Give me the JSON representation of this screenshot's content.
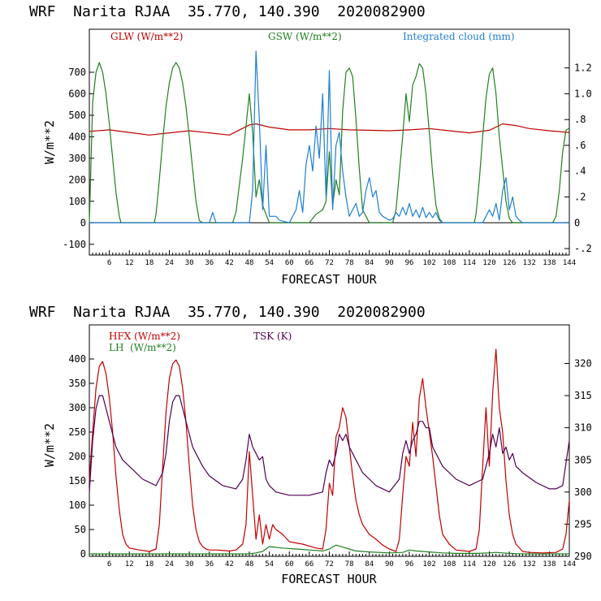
{
  "chart_data": [
    {
      "type": "line",
      "title": "WRF  Narita RJAA  35.770, 140.390  2020082900",
      "xlabel": "FORECAST HOUR",
      "ylabel": "W/m**2",
      "xlim": [
        0,
        144
      ],
      "ylim": [
        -150,
        900
      ],
      "y2lim": [
        -0.25,
        1.5
      ],
      "x_ticks": [
        6,
        12,
        18,
        24,
        30,
        36,
        42,
        48,
        54,
        60,
        66,
        72,
        78,
        84,
        90,
        96,
        102,
        108,
        114,
        120,
        126,
        132,
        138,
        144
      ],
      "y_ticks": [
        -100,
        0,
        100,
        200,
        300,
        400,
        500,
        600,
        700
      ],
      "y2_ticks": [
        -0.2,
        0,
        0.2,
        0.4,
        0.6,
        0.8,
        1.0,
        1.2
      ],
      "y2_tick_labels": [
        "-.2",
        "0",
        ".2",
        ".4",
        ".6",
        ".8",
        "1.0",
        "1.2"
      ],
      "legend": [
        "GLW (W/m**2)",
        "GSW (W/m**2)",
        "Integrated cloud (mm)"
      ],
      "series": [
        {
          "name": "GLW (W/m**2)",
          "color": "#c00000",
          "axis": "left",
          "x": [
            0,
            6,
            12,
            18,
            24,
            30,
            36,
            42,
            48,
            50,
            54,
            60,
            66,
            72,
            78,
            84,
            90,
            96,
            102,
            108,
            114,
            120,
            124,
            128,
            132,
            138,
            144
          ],
          "y": [
            425,
            432,
            420,
            408,
            418,
            428,
            418,
            408,
            455,
            460,
            445,
            432,
            432,
            438,
            432,
            430,
            428,
            432,
            438,
            428,
            418,
            430,
            460,
            452,
            438,
            428,
            420
          ]
        },
        {
          "name": "GSW (W/m**2)",
          "color": "#208020",
          "axis": "left",
          "x": [
            0,
            1,
            2,
            3,
            4,
            5,
            6,
            7,
            8,
            9,
            9.5,
            19.5,
            20,
            21,
            22,
            23,
            24,
            25,
            26,
            27,
            28,
            29,
            30,
            31,
            32,
            33,
            34,
            35,
            36,
            43,
            44,
            46,
            48,
            49,
            50,
            51,
            52,
            54,
            57,
            60,
            62,
            64,
            66,
            68,
            70,
            71,
            72,
            73,
            74,
            75,
            76,
            77,
            78,
            79,
            80,
            81,
            82,
            84,
            86,
            88,
            91,
            92,
            94,
            95,
            96,
            97,
            98,
            99,
            100,
            101,
            102,
            103,
            104,
            105,
            106,
            115.5,
            116,
            117,
            118,
            119,
            120,
            121,
            122,
            123,
            124,
            125,
            126,
            127,
            128,
            139,
            140,
            141,
            142,
            143,
            144
          ],
          "y": [
            0,
            560,
            700,
            745,
            700,
            600,
            460,
            300,
            140,
            30,
            0,
            0,
            40,
            200,
            380,
            540,
            650,
            720,
            745,
            720,
            650,
            540,
            400,
            250,
            100,
            10,
            0,
            0,
            0,
            0,
            50,
            300,
            600,
            420,
            120,
            200,
            80,
            0,
            0,
            0,
            0,
            0,
            0,
            40,
            60,
            100,
            330,
            80,
            200,
            130,
            520,
            700,
            720,
            680,
            480,
            250,
            60,
            0,
            0,
            0,
            0,
            60,
            400,
            600,
            470,
            640,
            680,
            740,
            720,
            600,
            420,
            230,
            80,
            20,
            0,
            0,
            40,
            200,
            400,
            580,
            690,
            720,
            600,
            400,
            250,
            100,
            20,
            0,
            0,
            0,
            30,
            150,
            330,
            430,
            440
          ]
        },
        {
          "name": "Integrated cloud (mm)",
          "color": "#1f7fd0",
          "axis": "right",
          "x": [
            0,
            36,
            37,
            38,
            48,
            49,
            50,
            51,
            52,
            53,
            54,
            55,
            56,
            57,
            60,
            62,
            63,
            64,
            65,
            66,
            67,
            68,
            69,
            70,
            71,
            72,
            73,
            74,
            75,
            76,
            77,
            78,
            79,
            80,
            81,
            82,
            83,
            84,
            85,
            86,
            87,
            88,
            90,
            91,
            92,
            93,
            94,
            95,
            96,
            97,
            98,
            99,
            100,
            101,
            102,
            103,
            104,
            105,
            106,
            118,
            119,
            120,
            121,
            122,
            123,
            124,
            125,
            126,
            127,
            128,
            129,
            130,
            144
          ],
          "y": [
            0,
            0,
            0.08,
            0,
            0,
            0.25,
            1.33,
            0.8,
            0.1,
            0.6,
            0.05,
            0.05,
            0.05,
            0.02,
            0,
            0.1,
            0.25,
            0.08,
            0.45,
            0.6,
            0.4,
            0.75,
            0.5,
            1.0,
            0.2,
            1.18,
            0.1,
            0.6,
            0.7,
            0.4,
            0.2,
            0.05,
            0.1,
            0.15,
            0.05,
            0.08,
            0.25,
            0.35,
            0.2,
            0.25,
            0.08,
            0.05,
            0.02,
            0.03,
            0.08,
            0.05,
            0.12,
            0.06,
            0.15,
            0.05,
            0.1,
            0.04,
            0.12,
            0.04,
            0.08,
            0.04,
            0.08,
            0.02,
            0,
            0,
            0.05,
            0.1,
            0.05,
            0.15,
            0.02,
            0.25,
            0.35,
            0.1,
            0.2,
            0.05,
            0.02,
            0,
            0
          ]
        }
      ]
    },
    {
      "type": "line",
      "title": "WRF  Narita RJAA  35.770, 140.390  2020082900",
      "xlabel": "FORECAST HOUR",
      "ylabel": "W/m**2",
      "xlim": [
        0,
        144
      ],
      "ylim": [
        -5,
        470
      ],
      "y2lim": [
        290,
        326
      ],
      "x_ticks": [
        6,
        12,
        18,
        24,
        30,
        36,
        42,
        48,
        54,
        60,
        66,
        72,
        78,
        84,
        90,
        96,
        102,
        108,
        114,
        120,
        126,
        132,
        138,
        144
      ],
      "y_ticks": [
        0,
        50,
        100,
        150,
        200,
        250,
        300,
        350,
        400
      ],
      "y2_ticks": [
        290,
        295,
        300,
        305,
        310,
        315,
        320
      ],
      "legend": [
        "HFX (W/m**2)",
        "LH  (W/m**2)",
        "TSK (K)"
      ],
      "series": [
        {
          "name": "HFX (W/m**2)",
          "color": "#c00000",
          "axis": "left",
          "x": [
            0,
            1,
            2,
            3,
            4,
            5,
            6,
            7,
            8,
            9,
            10,
            11,
            12,
            15,
            18,
            20,
            21,
            22,
            23,
            24,
            25,
            26,
            27,
            28,
            29,
            30,
            31,
            32,
            33,
            34,
            35,
            36,
            38,
            42,
            44,
            46,
            47,
            48,
            49,
            50,
            51,
            52,
            53,
            54,
            55,
            56,
            58,
            60,
            64,
            68,
            70,
            71,
            72,
            73,
            74,
            75,
            76,
            77,
            78,
            79,
            80,
            81,
            82,
            84,
            86,
            88,
            90,
            92,
            93,
            94,
            95,
            96,
            97,
            98,
            99,
            100,
            101,
            102,
            103,
            104,
            105,
            106,
            108,
            110,
            114,
            116,
            117,
            118,
            119,
            120,
            121,
            122,
            123,
            124,
            125,
            126,
            127,
            128,
            130,
            132,
            136,
            140,
            142,
            143,
            144
          ],
          "y": [
            150,
            250,
            340,
            385,
            395,
            370,
            320,
            250,
            160,
            90,
            40,
            20,
            12,
            8,
            5,
            10,
            60,
            180,
            290,
            360,
            390,
            398,
            385,
            340,
            270,
            180,
            100,
            50,
            25,
            15,
            10,
            8,
            8,
            6,
            8,
            20,
            60,
            210,
            120,
            30,
            80,
            20,
            60,
            30,
            60,
            50,
            40,
            25,
            20,
            12,
            10,
            50,
            145,
            120,
            240,
            260,
            300,
            280,
            220,
            160,
            110,
            80,
            60,
            40,
            30,
            18,
            10,
            5,
            30,
            120,
            200,
            180,
            270,
            200,
            320,
            360,
            300,
            250,
            200,
            140,
            80,
            40,
            20,
            8,
            5,
            10,
            50,
            180,
            300,
            180,
            330,
            420,
            300,
            250,
            150,
            80,
            40,
            20,
            5,
            3,
            2,
            3,
            10,
            40,
            110
          ]
        },
        {
          "name": "LH  (W/m**2)",
          "color": "#208020",
          "axis": "left",
          "x": [
            0,
            48,
            50,
            52,
            54,
            58,
            62,
            66,
            70,
            72,
            74,
            76,
            78,
            80,
            84,
            90,
            94,
            96,
            98,
            100,
            102,
            106,
            110,
            116,
            120,
            122,
            124,
            126,
            130,
            144
          ],
          "y": [
            0,
            0,
            2,
            5,
            15,
            12,
            10,
            8,
            6,
            10,
            18,
            14,
            10,
            6,
            4,
            2,
            3,
            8,
            6,
            5,
            4,
            2,
            1,
            1,
            2,
            3,
            2,
            1,
            0,
            0
          ]
        },
        {
          "name": "TSK (K)",
          "color": "#500050",
          "axis": "right",
          "x": [
            0,
            1,
            2,
            3,
            4,
            5,
            6,
            7,
            8,
            10,
            12,
            16,
            20,
            22,
            23,
            24,
            25,
            26,
            27,
            28,
            29,
            30,
            31,
            32,
            34,
            36,
            40,
            44,
            46,
            47,
            48,
            49,
            50,
            51,
            52,
            53,
            54,
            56,
            60,
            66,
            70,
            71,
            72,
            73,
            74,
            75,
            76,
            77,
            78,
            79,
            80,
            82,
            84,
            86,
            90,
            93,
            94,
            95,
            96,
            97,
            98,
            99,
            100,
            101,
            102,
            103,
            104,
            106,
            110,
            114,
            118,
            119,
            120,
            121,
            122,
            123,
            124,
            125,
            126,
            127,
            128,
            130,
            134,
            138,
            140,
            142,
            144
          ],
          "y": [
            300,
            308,
            313,
            315,
            315,
            313,
            311,
            309,
            307,
            305,
            304,
            302,
            301,
            303,
            306,
            311,
            314,
            315,
            315,
            313,
            311,
            309,
            307,
            306,
            304,
            302.5,
            301,
            300.5,
            302,
            305,
            309,
            307,
            306,
            305,
            305.5,
            302,
            301,
            300,
            299.5,
            299.5,
            300,
            303,
            305,
            304,
            306,
            309,
            308,
            309,
            307,
            306,
            305,
            303,
            302,
            301,
            300,
            302,
            306,
            308,
            306,
            308,
            309,
            311,
            311,
            310,
            310,
            307,
            306,
            304,
            302,
            301,
            302,
            304,
            306,
            309,
            307,
            310,
            306,
            307,
            305,
            306,
            304,
            303,
            301.5,
            300.5,
            300.5,
            301,
            308
          ]
        }
      ]
    }
  ]
}
